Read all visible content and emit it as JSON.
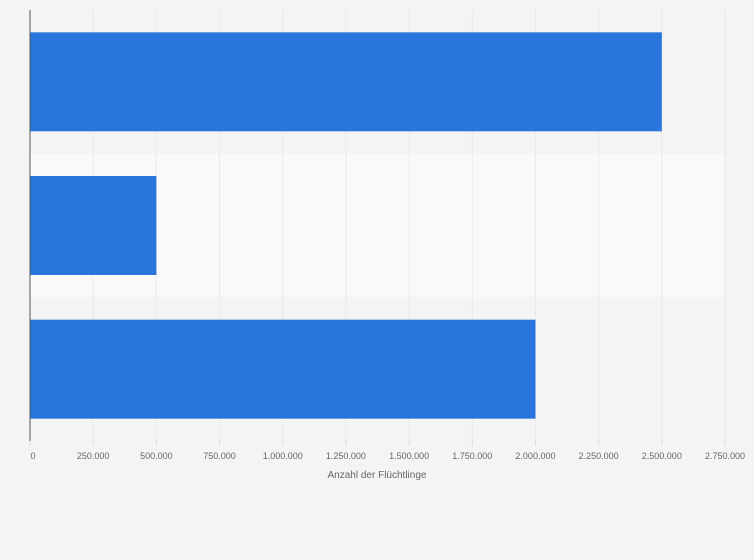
{
  "chart_data": {
    "type": "bar",
    "orientation": "horizontal",
    "categories": [
      "",
      "",
      ""
    ],
    "values": [
      2500000,
      500000,
      2000000
    ],
    "xlabel": "Anzahl der Flüchtlinge",
    "ylabel": "",
    "xlim": [
      0,
      2750000
    ],
    "ticks": [
      0,
      250000,
      500000,
      750000,
      1000000,
      1250000,
      1500000,
      1750000,
      2000000,
      2250000,
      2500000,
      2750000
    ],
    "tick_labels": [
      "0",
      "250.000",
      "500.000",
      "750.000",
      "1.000.000",
      "1.250.000",
      "1.500.000",
      "1.750.000",
      "2.000.000",
      "2.250.000",
      "2.500.000",
      "2.750.000"
    ],
    "grid": true,
    "colors": {
      "bar": "#2876dd",
      "background": "#f4f4f4",
      "band_alt": "#f9f9f9",
      "grid": "#dddddd",
      "axis": "#555555",
      "text": "#666666"
    }
  }
}
